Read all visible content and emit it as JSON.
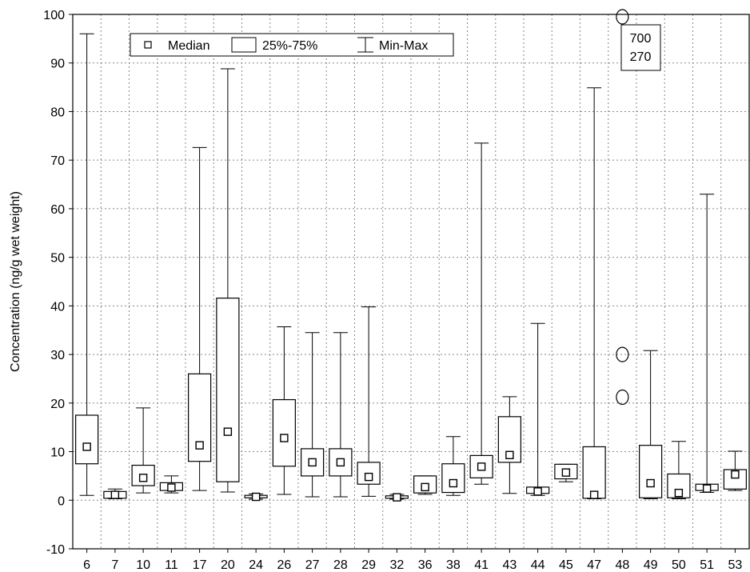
{
  "chart_data": {
    "type": "boxplot",
    "title": "",
    "xlabel": "",
    "ylabel": "Concentration (ng/g wet weight)",
    "ylim": [
      -10,
      100
    ],
    "yticks": [
      -10,
      0,
      10,
      20,
      30,
      40,
      50,
      60,
      70,
      80,
      90,
      100
    ],
    "grid": true,
    "legend": {
      "placement": "top-left",
      "entries": [
        "Median",
        "25%-75%",
        "Min-Max"
      ]
    },
    "categories": [
      "6",
      "7",
      "10",
      "11",
      "17",
      "20",
      "24",
      "26",
      "27",
      "28",
      "29",
      "32",
      "36",
      "38",
      "41",
      "43",
      "44",
      "45",
      "47",
      "48",
      "49",
      "50",
      "51",
      "53"
    ],
    "boxes": [
      {
        "label": "6",
        "min": 1,
        "q1": 7.5,
        "median": 11,
        "q3": 17.5,
        "max": 96
      },
      {
        "label": "7",
        "min": 0.3,
        "q1": 0.4,
        "median": 1.1,
        "q3": 1.8,
        "max": 2.3
      },
      {
        "label": "10",
        "min": 1.5,
        "q1": 3,
        "median": 4.6,
        "q3": 7.2,
        "max": 19
      },
      {
        "label": "11",
        "min": 1.5,
        "q1": 2,
        "median": 2.6,
        "q3": 3.6,
        "max": 5
      },
      {
        "label": "17",
        "min": 2,
        "q1": 8,
        "median": 11.3,
        "q3": 26,
        "max": 72.6
      },
      {
        "label": "20",
        "min": 1.7,
        "q1": 3.8,
        "median": 14.1,
        "q3": 41.6,
        "max": 88.8
      },
      {
        "label": "24",
        "min": 0.2,
        "q1": 0.5,
        "median": 0.7,
        "q3": 1,
        "max": 1.3
      },
      {
        "label": "26",
        "min": 1.2,
        "q1": 7,
        "median": 12.8,
        "q3": 20.7,
        "max": 35.7
      },
      {
        "label": "27",
        "min": 0.7,
        "q1": 5,
        "median": 7.8,
        "q3": 10.6,
        "max": 34.5
      },
      {
        "label": "28",
        "min": 0.7,
        "q1": 5,
        "median": 7.8,
        "q3": 10.6,
        "max": 34.5
      },
      {
        "label": "29",
        "min": 0.8,
        "q1": 3.3,
        "median": 4.8,
        "q3": 7.8,
        "max": 39.8
      },
      {
        "label": "32",
        "min": 0.2,
        "q1": 0.4,
        "median": 0.6,
        "q3": 0.9,
        "max": 1.2
      },
      {
        "label": "36",
        "min": 1.2,
        "q1": 1.5,
        "median": 2.7,
        "q3": 5,
        "max": 5
      },
      {
        "label": "38",
        "min": 1,
        "q1": 1.6,
        "median": 3.5,
        "q3": 7.5,
        "max": 13.1
      },
      {
        "label": "41",
        "min": 3.3,
        "q1": 4.6,
        "median": 6.9,
        "q3": 9.2,
        "max": 73.5
      },
      {
        "label": "43",
        "min": 1.4,
        "q1": 7.8,
        "median": 9.3,
        "q3": 17.2,
        "max": 21.3
      },
      {
        "label": "44",
        "min": 1,
        "q1": 1.4,
        "median": 1.8,
        "q3": 2.7,
        "max": 36.4
      },
      {
        "label": "45",
        "min": 3.8,
        "q1": 4.4,
        "median": 5.7,
        "q3": 7.4,
        "max": 7.4
      },
      {
        "label": "47",
        "min": 0.3,
        "q1": 0.4,
        "median": 1.1,
        "q3": 11,
        "max": 84.9
      },
      {
        "label": "48",
        "outliers": [
          99.5,
          30,
          21.2
        ]
      },
      {
        "label": "49",
        "min": 0.3,
        "q1": 0.5,
        "median": 3.5,
        "q3": 11.3,
        "max": 30.8
      },
      {
        "label": "50",
        "min": 0.3,
        "q1": 0.5,
        "median": 1.5,
        "q3": 5.4,
        "max": 12.1
      },
      {
        "label": "51",
        "min": 1.6,
        "q1": 2,
        "median": 2.4,
        "q3": 3.3,
        "max": 63
      },
      {
        "label": "53",
        "min": 2,
        "q1": 2.3,
        "median": 5.3,
        "q3": 6.3,
        "max": 10.1
      }
    ],
    "annotations": [
      {
        "category": "48",
        "lines": [
          "700",
          "270"
        ]
      }
    ]
  }
}
